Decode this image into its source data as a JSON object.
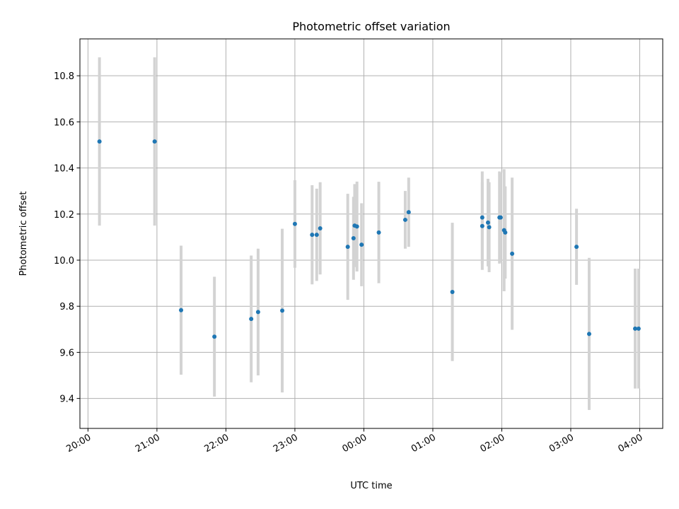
{
  "chart_data": {
    "type": "scatter",
    "title": "Photometric offset variation",
    "xlabel": "UTC time",
    "ylabel": "Photometric offset",
    "grid": true,
    "x_axis_type": "time",
    "xlim": [
      "19:53",
      "04:20"
    ],
    "ylim": [
      9.27,
      10.96
    ],
    "x_ticks": [
      "20:00",
      "21:00",
      "22:00",
      "23:00",
      "00:00",
      "01:00",
      "02:00",
      "03:00",
      "04:00"
    ],
    "y_ticks": [
      "9.4",
      "9.6",
      "9.8",
      "10.0",
      "10.2",
      "10.4",
      "10.6",
      "10.8"
    ],
    "point_color": "#1f77b4",
    "errorbar_color": "#d3d3d3",
    "points": [
      {
        "x": "20:10",
        "y": 10.515,
        "err": 0.365
      },
      {
        "x": "20:58",
        "y": 10.515,
        "err": 0.365
      },
      {
        "x": "21:21",
        "y": 9.783,
        "err": 0.28
      },
      {
        "x": "21:50",
        "y": 9.668,
        "err": 0.26
      },
      {
        "x": "22:22",
        "y": 9.745,
        "err": 0.275
      },
      {
        "x": "22:28",
        "y": 9.775,
        "err": 0.275
      },
      {
        "x": "22:49",
        "y": 9.781,
        "err": 0.355
      },
      {
        "x": "23:00",
        "y": 10.157,
        "err": 0.19
      },
      {
        "x": "23:15",
        "y": 10.11,
        "err": 0.215
      },
      {
        "x": "23:19",
        "y": 10.11,
        "err": 0.2
      },
      {
        "x": "23:22",
        "y": 10.138,
        "err": 0.2
      },
      {
        "x": "23:46",
        "y": 10.058,
        "err": 0.23
      },
      {
        "x": "23:51",
        "y": 10.095,
        "err": 0.18
      },
      {
        "x": "23:52",
        "y": 10.15,
        "err": 0.18
      },
      {
        "x": "23:54",
        "y": 10.146,
        "err": 0.195
      },
      {
        "x": "23:58",
        "y": 10.067,
        "err": 0.18
      },
      {
        "x": "00:13",
        "y": 10.12,
        "err": 0.22
      },
      {
        "x": "00:36",
        "y": 10.175,
        "err": 0.125
      },
      {
        "x": "00:39",
        "y": 10.208,
        "err": 0.15
      },
      {
        "x": "01:17",
        "y": 9.862,
        "err": 0.3
      },
      {
        "x": "01:43",
        "y": 10.148,
        "err": 0.19
      },
      {
        "x": "01:43",
        "y": 10.185,
        "err": 0.2
      },
      {
        "x": "01:48",
        "y": 10.163,
        "err": 0.19
      },
      {
        "x": "01:49",
        "y": 10.143,
        "err": 0.195
      },
      {
        "x": "01:58",
        "y": 10.185,
        "err": 0.2
      },
      {
        "x": "01:59",
        "y": 10.185,
        "err": 0.195
      },
      {
        "x": "02:02",
        "y": 10.13,
        "err": 0.265
      },
      {
        "x": "02:03",
        "y": 10.12,
        "err": 0.2
      },
      {
        "x": "02:09",
        "y": 10.028,
        "err": 0.33
      },
      {
        "x": "03:05",
        "y": 10.058,
        "err": 0.165
      },
      {
        "x": "03:16",
        "y": 9.68,
        "err": 0.33
      },
      {
        "x": "03:56",
        "y": 9.703,
        "err": 0.26
      },
      {
        "x": "03:59",
        "y": 9.703,
        "err": 0.26
      }
    ]
  }
}
